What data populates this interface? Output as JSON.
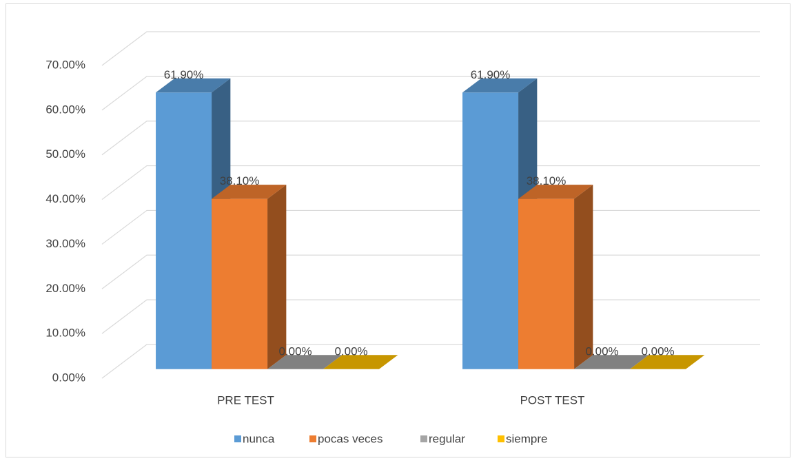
{
  "chart_data": {
    "type": "bar3d",
    "categories": [
      "PRE TEST",
      "POST TEST"
    ],
    "series": [
      {
        "name": "nunca",
        "color": "#5b9bd5",
        "values": [
          61.9,
          61.9
        ],
        "value_labels": [
          "61.90%",
          "61.90%"
        ]
      },
      {
        "name": "pocas veces",
        "color": "#ed7d31",
        "values": [
          38.1,
          38.1
        ],
        "value_labels": [
          "38.10%",
          "38.10%"
        ]
      },
      {
        "name": "regular",
        "color": "#a5a5a5",
        "values": [
          0,
          0
        ],
        "value_labels": [
          "0.00%",
          "0.00%"
        ]
      },
      {
        "name": "siempre",
        "color": "#ffc000",
        "values": [
          0,
          0
        ],
        "value_labels": [
          "0.00%",
          "0.00%"
        ]
      }
    ],
    "ylim": [
      0,
      70
    ],
    "yticks": [
      {
        "value": 0,
        "label": "0.00%"
      },
      {
        "value": 10,
        "label": "10.00%"
      },
      {
        "value": 20,
        "label": "20.00%"
      },
      {
        "value": 30,
        "label": "30.00%"
      },
      {
        "value": 40,
        "label": "40.00%"
      },
      {
        "value": 50,
        "label": "50.00%"
      },
      {
        "value": 60,
        "label": "60.00%"
      },
      {
        "value": 70,
        "label": "70.00%"
      }
    ],
    "grid": true,
    "legend": "bottom"
  }
}
